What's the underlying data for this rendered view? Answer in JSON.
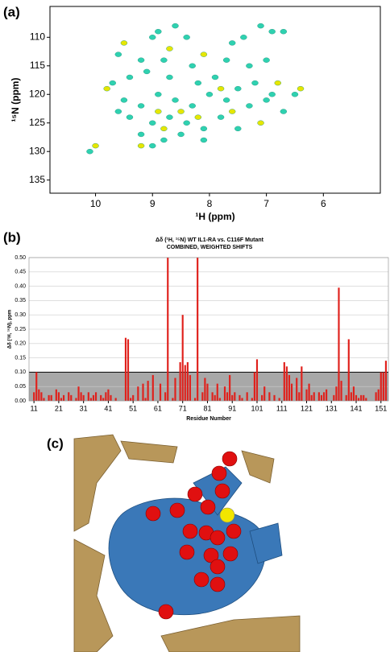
{
  "panel_labels": [
    "(a)",
    "(b)",
    "(c)"
  ],
  "chart_data": [
    {
      "type": "scatter",
      "xlabel": "¹H (ppm)",
      "ylabel": "¹⁵N (ppm)",
      "xlim": [
        10.8,
        5.0
      ],
      "ylim": [
        137.3,
        104.6
      ],
      "xticks": [
        10,
        9,
        8,
        7,
        6
      ],
      "yticks": [
        110,
        115,
        120,
        125,
        130,
        135
      ],
      "series": [
        {
          "color": "#2fd1b0",
          "x": [
            9.0,
            8.9,
            8.6,
            8.4,
            7.6,
            7.4,
            7.1,
            6.9,
            6.7,
            9.6,
            9.2,
            8.8,
            8.3,
            7.7,
            7.3,
            7.0,
            9.7,
            9.4,
            9.1,
            8.7,
            8.2,
            7.9,
            7.5,
            7.2,
            6.9,
            9.5,
            9.2,
            8.9,
            8.6,
            8.3,
            8.0,
            7.7,
            7.3,
            6.7,
            9.4,
            9.0,
            8.7,
            8.4,
            8.1,
            7.8,
            7.5,
            9.2,
            8.8,
            8.5,
            8.1,
            9.0,
            10.1,
            9.6,
            7.0,
            6.5
          ],
          "values": [
            110,
            109,
            108,
            110,
            111,
            110,
            108,
            109,
            109,
            113,
            114,
            114,
            115,
            114,
            115,
            114,
            118,
            117,
            116,
            117,
            118,
            117,
            119,
            118,
            120,
            121,
            122,
            120,
            121,
            122,
            120,
            121,
            122,
            123,
            124,
            125,
            124,
            125,
            126,
            124,
            126,
            127,
            128,
            127,
            128,
            129,
            130,
            123,
            121,
            120
          ]
        },
        {
          "color": "#e6e600",
          "x": [
            9.5,
            8.7,
            8.1,
            7.8,
            6.8,
            9.8,
            8.9,
            8.5,
            7.6,
            6.4,
            8.2,
            9.2,
            10.0,
            8.8,
            7.1
          ],
          "values": [
            111,
            112,
            113,
            119,
            118,
            119,
            123,
            123,
            123,
            119,
            124,
            129,
            129,
            126,
            125
          ]
        }
      ]
    },
    {
      "type": "bar",
      "title": "Δδ (¹H, ¹⁵N) WT IL1-RA vs. C116F Mutant",
      "subtitle": "COMBINED, WEIGHTED SHIFTS",
      "xlabel": "Residue Number",
      "ylabel": "Δδ (¹H, ¹⁵N), ppm",
      "color": "#e0201b",
      "threshold": 0.1,
      "xlim": [
        9,
        154
      ],
      "ylim": [
        0,
        0.5
      ],
      "xticks": [
        11,
        21,
        31,
        41,
        51,
        61,
        71,
        81,
        91,
        101,
        111,
        121,
        131,
        141,
        151
      ],
      "yticks": [
        {
          "value": 0,
          "label": "0.00"
        },
        {
          "value": 0.05,
          "label": "0.05"
        },
        {
          "value": 0.1,
          "label": "0.10"
        },
        {
          "value": 0.15,
          "label": "0.15"
        },
        {
          "value": 0.2,
          "label": "0.20"
        },
        {
          "value": 0.25,
          "label": "0.25"
        },
        {
          "value": 0.3,
          "label": "0.30"
        },
        {
          "value": 0.35,
          "label": "0.35"
        },
        {
          "value": 0.4,
          "label": "0.40"
        },
        {
          "value": 0.45,
          "label": "0.45"
        },
        {
          "value": 0.5,
          "label": "0.50"
        }
      ],
      "x": [
        11,
        12,
        13,
        14,
        15,
        16,
        17,
        18,
        19,
        20,
        21,
        22,
        23,
        24,
        25,
        26,
        27,
        28,
        29,
        30,
        31,
        32,
        33,
        34,
        35,
        36,
        37,
        38,
        39,
        40,
        41,
        42,
        43,
        44,
        45,
        46,
        47,
        48,
        49,
        50,
        51,
        52,
        53,
        54,
        55,
        56,
        57,
        58,
        59,
        60,
        61,
        62,
        63,
        64,
        65,
        66,
        67,
        68,
        69,
        70,
        71,
        72,
        73,
        74,
        75,
        76,
        77,
        78,
        79,
        80,
        81,
        82,
        83,
        84,
        85,
        86,
        87,
        88,
        89,
        90,
        91,
        92,
        93,
        94,
        95,
        96,
        97,
        98,
        99,
        100,
        101,
        102,
        103,
        104,
        105,
        106,
        107,
        108,
        109,
        110,
        111,
        112,
        113,
        114,
        115,
        116,
        117,
        118,
        119,
        120,
        121,
        122,
        123,
        124,
        125,
        126,
        127,
        128,
        129,
        130,
        131,
        132,
        133,
        134,
        135,
        136,
        137,
        138,
        139,
        140,
        141,
        142,
        143,
        144,
        145,
        146,
        147,
        148,
        149,
        150,
        151,
        152,
        153
      ],
      "values": [
        0.03,
        0.1,
        0.04,
        0.03,
        0.01,
        0.0,
        0.02,
        0.02,
        0.0,
        0.04,
        0.03,
        0.01,
        0.02,
        0.0,
        0.03,
        0.02,
        0.0,
        0.01,
        0.05,
        0.03,
        0.02,
        0.0,
        0.03,
        0.01,
        0.02,
        0.03,
        0.0,
        0.02,
        0.01,
        0.03,
        0.04,
        0.02,
        0.0,
        0.01,
        0.0,
        0.0,
        0.0,
        0.22,
        0.215,
        0.01,
        0.02,
        0.0,
        0.05,
        0.0,
        0.06,
        0.01,
        0.07,
        0.0,
        0.09,
        0.0,
        0.0,
        0.06,
        0.0,
        0.03,
        0.5,
        0.0,
        0.01,
        0.08,
        0.0,
        0.135,
        0.3,
        0.125,
        0.135,
        0.09,
        0.0,
        0.01,
        0.5,
        0.0,
        0.03,
        0.08,
        0.06,
        0.0,
        0.03,
        0.02,
        0.06,
        0.01,
        0.0,
        0.05,
        0.03,
        0.09,
        0.02,
        0.03,
        0.0,
        0.02,
        0.01,
        0.0,
        0.03,
        0.0,
        0.01,
        0.1,
        0.145,
        0.0,
        0.02,
        0.05,
        0.0,
        0.03,
        0.0,
        0.02,
        0.0,
        0.01,
        0.0,
        0.135,
        0.12,
        0.09,
        0.06,
        0.0,
        0.08,
        0.03,
        0.12,
        0.0,
        0.04,
        0.06,
        0.02,
        0.03,
        0.0,
        0.03,
        0.02,
        0.03,
        0.04,
        0.0,
        0.0,
        0.02,
        0.05,
        0.395,
        0.07,
        0.0,
        0.02,
        0.215,
        0.03,
        0.05,
        0.02,
        0.01,
        0.02,
        0.02,
        0.01,
        0.0,
        0.0,
        0.0,
        0.03,
        0.04,
        0.1,
        0.1,
        0.14
      ]
    }
  ]
}
